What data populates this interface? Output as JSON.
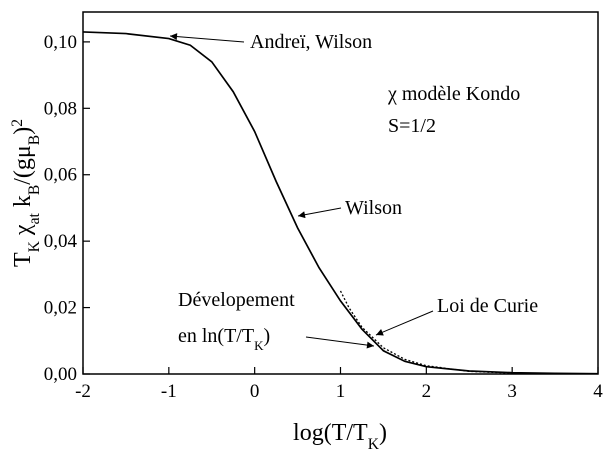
{
  "chart_data": {
    "type": "line",
    "xlabel": [
      {
        "text": "log(T/T"
      },
      {
        "text": "K",
        "shift": "sub"
      },
      {
        "text": ")"
      }
    ],
    "ylabel": [
      {
        "text": "T"
      },
      {
        "text": "K",
        "shift": "sub"
      },
      {
        "text": " χ"
      },
      {
        "text": "at",
        "shift": "sub"
      },
      {
        "text": " k"
      },
      {
        "text": "B",
        "shift": "sub"
      },
      {
        "text": "/(gμ"
      },
      {
        "text": "B",
        "shift": "sub"
      },
      {
        "text": ")"
      },
      {
        "text": "2",
        "shift": "super"
      }
    ],
    "xlim": [
      -2,
      4
    ],
    "ylim": [
      0,
      0.109
    ],
    "xticks": [
      -2,
      -1,
      0,
      1,
      2,
      3,
      4
    ],
    "yticks": [
      {
        "value": 0,
        "label": "0,00"
      },
      {
        "value": 0.02,
        "label": "0,02"
      },
      {
        "value": 0.04,
        "label": "0,04"
      },
      {
        "value": 0.06,
        "label": "0,06"
      },
      {
        "value": 0.08,
        "label": "0,08"
      },
      {
        "value": 0.1,
        "label": "0,10"
      }
    ],
    "series": [
      {
        "name": "Wilson",
        "color": "#000000",
        "dash": "solid",
        "x": [
          -2,
          -1.5,
          -1,
          -0.75,
          -0.5,
          -0.25,
          0,
          0.25,
          0.5,
          0.75,
          1,
          1.25,
          1.5,
          1.75,
          2,
          2.5,
          3,
          3.5,
          4
        ],
        "values": [
          0.103,
          0.1025,
          0.101,
          0.099,
          0.094,
          0.085,
          0.073,
          0.058,
          0.044,
          0.032,
          0.022,
          0.0135,
          0.007,
          0.0038,
          0.0022,
          0.0009,
          0.0004,
          0.0002,
          0.0001
        ]
      },
      {
        "name": "Loi de Curie",
        "color": "#000000",
        "dash": "dotted",
        "x": [
          1,
          1.1,
          1.25,
          1.5,
          1.75,
          2,
          2.5,
          3
        ],
        "values": [
          0.025,
          0.0199,
          0.0141,
          0.0079,
          0.0044,
          0.0025,
          0.0008,
          0.00025
        ]
      }
    ],
    "annotations": [
      {
        "text": "Andreï, Wilson"
      },
      {
        "text": "χ modèle Kondo"
      },
      {
        "text": "S=1/2"
      },
      {
        "text": "Wilson"
      },
      {
        "text": "Dévelopement"
      },
      {
        "segments": [
          {
            "text": "en ln(T/T"
          },
          {
            "text": "K",
            "shift": "sub"
          },
          {
            "text": ")"
          }
        ]
      },
      {
        "text": "Loi de Curie"
      }
    ]
  }
}
